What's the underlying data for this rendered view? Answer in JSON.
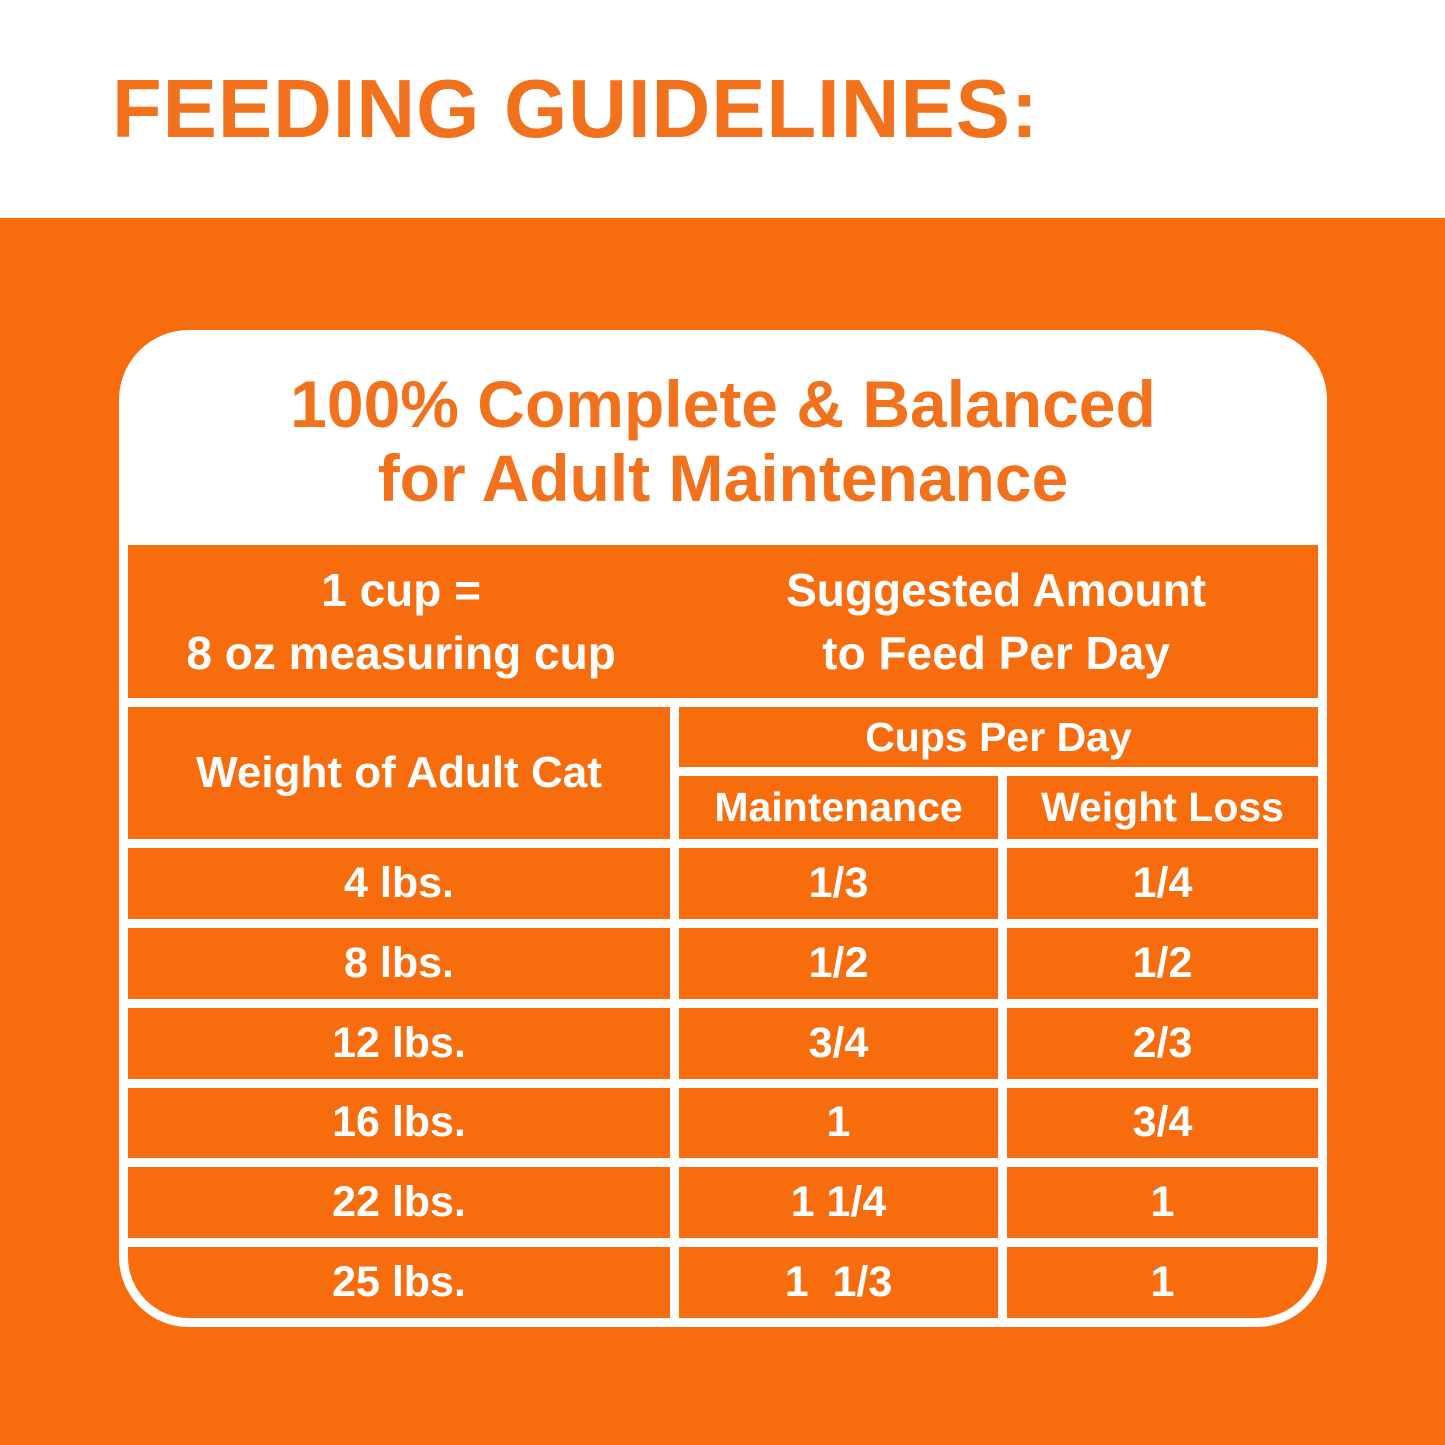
{
  "page": {
    "title": "FEEDING GUIDELINES:"
  },
  "colors": {
    "orange_background": "#F76C0D",
    "orange_text": "#F2711D",
    "white": "#FFFFFF"
  },
  "panel": {
    "heading_line1": "100% Complete & Balanced",
    "heading_line2": "for Adult Maintenance"
  },
  "table": {
    "note_left_line1": "1 cup =",
    "note_left_line2": "8 oz measuring cup",
    "note_right_line1": "Suggested Amount",
    "note_right_line2": "to Feed Per Day",
    "col_weight": "Weight of Adult Cat",
    "group_header": "Cups Per Day",
    "col_maintenance": "Maintenance",
    "col_weight_loss": "Weight Loss",
    "rows": [
      {
        "weight": "4 lbs.",
        "maintenance": "1/3",
        "weight_loss": "1/4"
      },
      {
        "weight": "8 lbs.",
        "maintenance": "1/2",
        "weight_loss": "1/2"
      },
      {
        "weight": "12 lbs.",
        "maintenance": "3/4",
        "weight_loss": "2/3"
      },
      {
        "weight": "16 lbs.",
        "maintenance": "1",
        "weight_loss": "3/4"
      },
      {
        "weight": "22 lbs.",
        "maintenance": "1 1/4",
        "weight_loss": "1"
      },
      {
        "weight": "25 lbs.",
        "maintenance": "1  1/3",
        "weight_loss": "1"
      }
    ]
  },
  "chart_data": {
    "type": "table",
    "title": "FEEDING GUIDELINES:",
    "subtitle": "100% Complete & Balanced for Adult Maintenance",
    "note": "1 cup = 8 oz measuring cup",
    "group_header": "Cups Per Day — Suggested Amount to Feed Per Day",
    "columns": [
      "Weight of Adult Cat",
      "Maintenance",
      "Weight Loss"
    ],
    "rows": [
      [
        "4 lbs.",
        "1/3",
        "1/4"
      ],
      [
        "8 lbs.",
        "1/2",
        "1/2"
      ],
      [
        "12 lbs.",
        "3/4",
        "2/3"
      ],
      [
        "16 lbs.",
        "1",
        "3/4"
      ],
      [
        "22 lbs.",
        "1 1/4",
        "1"
      ],
      [
        "25 lbs.",
        "1 1/3",
        "1"
      ]
    ]
  }
}
